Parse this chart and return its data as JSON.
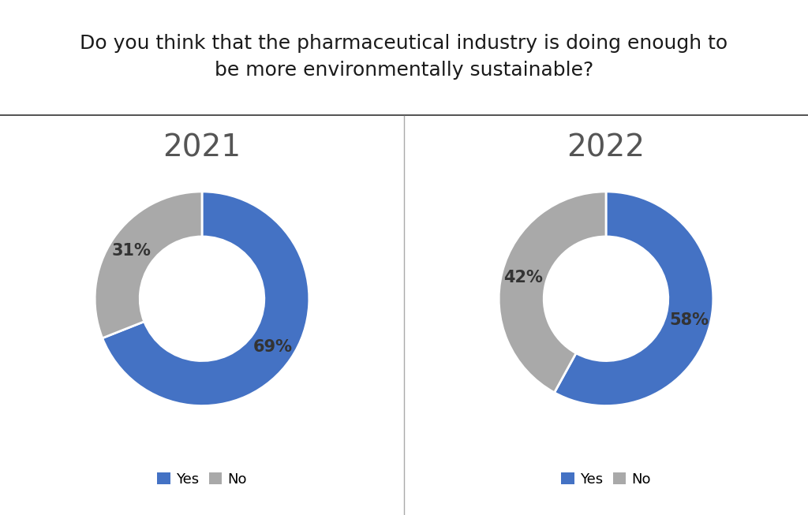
{
  "title": "Do you think that the pharmaceutical industry is doing enough to\nbe more environmentally sustainable?",
  "title_fontsize": 18,
  "year_labels": [
    "2021",
    "2022"
  ],
  "year_fontsize": 28,
  "data_2021": [
    69,
    31
  ],
  "data_2022": [
    58,
    42
  ],
  "labels": [
    "Yes",
    "No"
  ],
  "colors": [
    "#4472C4",
    "#A9A9A9"
  ],
  "pct_labels_2021": [
    "69%",
    "31%"
  ],
  "pct_labels_2022": [
    "58%",
    "42%"
  ],
  "pct_fontsize": 15,
  "legend_fontsize": 13,
  "background_color": "#ffffff",
  "donut_width": 0.42,
  "separator_color": "#555555",
  "divider_color": "#aaaaaa",
  "text_color": "#333333",
  "year_color": "#555555"
}
